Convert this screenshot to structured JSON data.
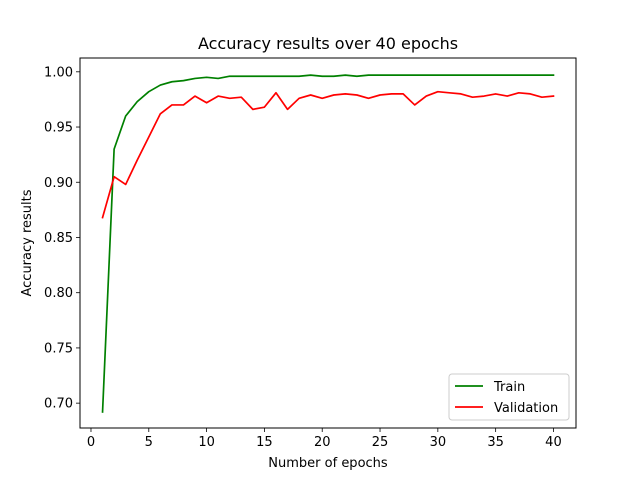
{
  "chart_data": {
    "type": "line",
    "title": "Accuracy results over 40 epochs",
    "xlabel": "Number of epochs",
    "ylabel": "Accuracy results",
    "xlim": [
      -0.95,
      41.95
    ],
    "ylim": [
      0.6775,
      1.0125
    ],
    "xticks": [
      0,
      5,
      10,
      15,
      20,
      25,
      30,
      35,
      40
    ],
    "yticks": [
      0.7,
      0.75,
      0.8,
      0.85,
      0.9,
      0.95,
      1.0
    ],
    "grid": false,
    "legend_position": "bottom-right",
    "x": [
      1,
      2,
      3,
      4,
      5,
      6,
      7,
      8,
      9,
      10,
      11,
      12,
      13,
      14,
      15,
      16,
      17,
      18,
      19,
      20,
      21,
      22,
      23,
      24,
      25,
      26,
      27,
      28,
      29,
      30,
      31,
      32,
      33,
      34,
      35,
      36,
      37,
      38,
      39,
      40
    ],
    "series": [
      {
        "name": "Train",
        "color": "#008000",
        "values": [
          0.692,
          0.93,
          0.96,
          0.973,
          0.982,
          0.988,
          0.991,
          0.992,
          0.994,
          0.995,
          0.994,
          0.996,
          0.996,
          0.996,
          0.996,
          0.996,
          0.996,
          0.996,
          0.997,
          0.996,
          0.996,
          0.997,
          0.996,
          0.997,
          0.997,
          0.997,
          0.997,
          0.997,
          0.997,
          0.997,
          0.997,
          0.997,
          0.997,
          0.997,
          0.997,
          0.997,
          0.997,
          0.997,
          0.997,
          0.997
        ]
      },
      {
        "name": "Validation",
        "color": "#ff0000",
        "values": [
          0.868,
          0.905,
          0.898,
          0.92,
          0.941,
          0.962,
          0.97,
          0.97,
          0.978,
          0.972,
          0.978,
          0.976,
          0.977,
          0.966,
          0.968,
          0.981,
          0.966,
          0.976,
          0.979,
          0.976,
          0.979,
          0.98,
          0.979,
          0.976,
          0.979,
          0.98,
          0.98,
          0.97,
          0.978,
          0.982,
          0.981,
          0.98,
          0.977,
          0.978,
          0.98,
          0.978,
          0.981,
          0.98,
          0.977,
          0.978
        ]
      }
    ]
  }
}
